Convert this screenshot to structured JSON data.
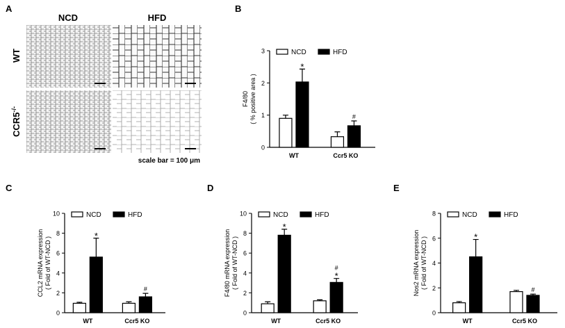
{
  "panel_a": {
    "letter": "A",
    "columns": [
      "NCD",
      "HFD"
    ],
    "rows": [
      "WT",
      "CCR5"
    ],
    "row_superscript": "-/-",
    "scale_bar": "scale bar = 100 μm"
  },
  "chart_data": [
    {
      "type": "bar",
      "panel": "B",
      "ylabel": [
        "F4/80",
        "( % positive area )"
      ],
      "categories": [
        "WT",
        "Ccr5 KO"
      ],
      "series": [
        {
          "name": "NCD",
          "color": "#ffffff",
          "values": [
            0.9,
            0.33
          ],
          "errors": [
            0.1,
            0.15
          ]
        },
        {
          "name": "HFD",
          "color": "#000000",
          "values": [
            2.03,
            0.67
          ],
          "errors": [
            0.4,
            0.15
          ],
          "annotations": [
            [
              "*"
            ],
            [
              "#"
            ]
          ]
        }
      ],
      "ylim": [
        0,
        3
      ],
      "yticks": [
        0,
        1,
        2,
        3
      ],
      "legend": "top"
    },
    {
      "type": "bar",
      "panel": "C",
      "ylabel": [
        "CCL2 mRNA expression",
        "( Fold of  WT-NCD )"
      ],
      "categories": [
        "WT",
        "Ccr5 KO"
      ],
      "series": [
        {
          "name": "NCD",
          "color": "#ffffff",
          "values": [
            0.95,
            0.95
          ],
          "errors": [
            0.1,
            0.15
          ]
        },
        {
          "name": "HFD",
          "color": "#000000",
          "values": [
            5.6,
            1.6
          ],
          "errors": [
            1.9,
            0.35
          ],
          "annotations": [
            [
              "*"
            ],
            [
              "#"
            ]
          ]
        }
      ],
      "ylim": [
        0,
        10
      ],
      "yticks": [
        0,
        2,
        4,
        6,
        8,
        10
      ],
      "legend": "top"
    },
    {
      "type": "bar",
      "panel": "D",
      "ylabel": [
        "F4/80 mRNA expression",
        "( Fold of  WT-NCD )"
      ],
      "categories": [
        "WT",
        "Ccr5 KO"
      ],
      "series": [
        {
          "name": "NCD",
          "color": "#ffffff",
          "values": [
            0.9,
            1.2
          ],
          "errors": [
            0.2,
            0.1
          ]
        },
        {
          "name": "HFD",
          "color": "#000000",
          "values": [
            7.8,
            3.05
          ],
          "errors": [
            0.6,
            0.4
          ],
          "annotations": [
            [
              "*"
            ],
            [
              "#",
              "*"
            ]
          ]
        }
      ],
      "ylim": [
        0,
        10
      ],
      "yticks": [
        0,
        2,
        4,
        6,
        8,
        10
      ],
      "legend": "top"
    },
    {
      "type": "bar",
      "panel": "E",
      "ylabel": [
        "Nos2 mRNA expression",
        "( Fold of  WT-NCD )"
      ],
      "categories": [
        "WT",
        "Ccr5 KO"
      ],
      "series": [
        {
          "name": "NCD",
          "color": "#ffffff",
          "values": [
            0.8,
            1.7
          ],
          "errors": [
            0.1,
            0.1
          ]
        },
        {
          "name": "HFD",
          "color": "#000000",
          "values": [
            4.5,
            1.4
          ],
          "errors": [
            1.4,
            0.1
          ],
          "annotations": [
            [
              "*"
            ],
            [
              "#"
            ]
          ]
        }
      ],
      "ylim": [
        0,
        8
      ],
      "yticks": [
        0,
        2,
        4,
        6,
        8
      ],
      "legend": "top"
    }
  ]
}
